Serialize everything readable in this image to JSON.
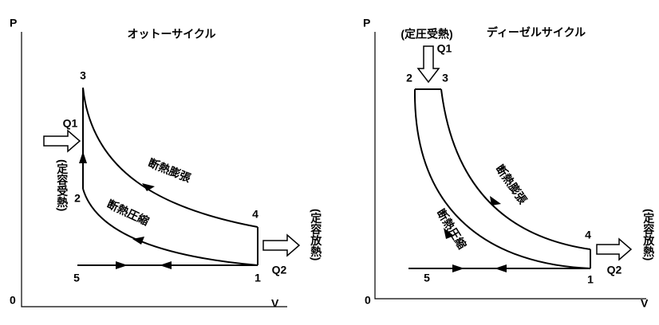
{
  "otto": {
    "title": "オットーサイクル",
    "p_axis": "P",
    "v_axis": "V",
    "origin": "0",
    "q1": "Q1",
    "q2": "Q2",
    "heat_in": "(定容受熱)",
    "heat_out": "(定容放熱)",
    "expansion": "断熱膨張",
    "compression": "断熱圧縮",
    "points": [
      "1",
      "2",
      "3",
      "4",
      "5"
    ]
  },
  "diesel": {
    "title": "ディーゼルサイクル",
    "p_axis": "P",
    "v_axis": "V",
    "origin": "0",
    "q1": "Q1",
    "q2": "Q2",
    "heat_in": "(定圧受熱)",
    "heat_out": "(定容放熱)",
    "expansion": "断熱膨張",
    "compression": "断熱圧縮",
    "points": [
      "1",
      "2",
      "3",
      "4",
      "5"
    ]
  }
}
